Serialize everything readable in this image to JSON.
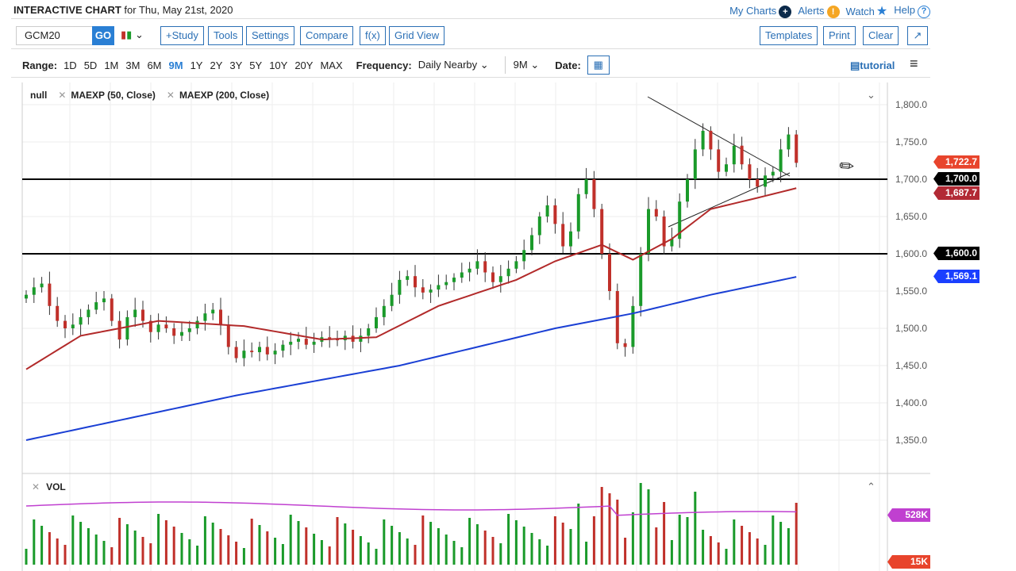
{
  "header": {
    "title_bold": "INTERACTIVE CHART",
    "title_rest": " for Thu, May 21st, 2020",
    "links": [
      "My Charts",
      "Alerts",
      "Watch",
      "Help"
    ]
  },
  "toolbar": {
    "symbol": "GCM20",
    "go": "GO",
    "buttons": [
      "+Study",
      "Tools",
      "Settings",
      "Compare",
      "f(x)",
      "Grid View"
    ],
    "right_buttons": [
      "Templates",
      "Print",
      "Clear"
    ]
  },
  "range": {
    "label": "Range:",
    "options": [
      "1D",
      "5D",
      "1M",
      "3M",
      "6M",
      "9M",
      "1Y",
      "2Y",
      "3Y",
      "5Y",
      "10Y",
      "20Y",
      "MAX"
    ],
    "active": "9M",
    "frequency_label": "Frequency:",
    "frequency": "Daily Nearby",
    "period": "9M",
    "date_label": "Date:",
    "tutorial": "tutorial"
  },
  "studies": {
    "main": "null",
    "ma1": "MAEXP (50, Close)",
    "ma2": "MAEXP (200, Close)",
    "vol": "VOL"
  },
  "colors": {
    "accent": "#2a6fb5",
    "up": "#1a9a2a",
    "down": "#c0302a",
    "ma50": "#b22a2a",
    "ma200": "#1a3fd4",
    "vol_ma": "#c040d0"
  },
  "chart_data": {
    "type": "candlestick",
    "yticks": [
      "1,800.0",
      "1,750.0",
      "1,700.0",
      "1,650.0",
      "1,600.0",
      "1,550.0",
      "1,500.0",
      "1,450.0",
      "1,400.0",
      "1,350.0"
    ],
    "ylim": [
      1325,
      1825
    ],
    "closes": [
      1545,
      1555,
      1560,
      1530,
      1510,
      1500,
      1505,
      1515,
      1525,
      1535,
      1540,
      1510,
      1485,
      1515,
      1525,
      1510,
      1495,
      1505,
      1500,
      1490,
      1495,
      1500,
      1510,
      1520,
      1525,
      1505,
      1475,
      1460,
      1470,
      1468,
      1475,
      1465,
      1470,
      1478,
      1482,
      1486,
      1478,
      1482,
      1488,
      1486,
      1484,
      1490,
      1482,
      1490,
      1500,
      1515,
      1530,
      1545,
      1565,
      1570,
      1555,
      1548,
      1552,
      1558,
      1562,
      1568,
      1575,
      1580,
      1590,
      1575,
      1562,
      1570,
      1580,
      1590,
      1605,
      1625,
      1650,
      1665,
      1640,
      1610,
      1630,
      1680,
      1700,
      1660,
      1600,
      1550,
      1480,
      1475,
      1530,
      1600,
      1660,
      1650,
      1610,
      1620,
      1670,
      1700,
      1740,
      1765,
      1740,
      1710,
      1720,
      1745,
      1720,
      1700,
      1690,
      1705,
      1710,
      1740,
      1760,
      1722
    ],
    "ma50": [
      [
        0,
        1445
      ],
      [
        7,
        1490
      ],
      [
        17,
        1510
      ],
      [
        28,
        1503
      ],
      [
        38,
        1485
      ],
      [
        45,
        1488
      ],
      [
        53,
        1530
      ],
      [
        63,
        1565
      ],
      [
        68,
        1590
      ],
      [
        74,
        1612
      ],
      [
        78,
        1592
      ],
      [
        83,
        1620
      ],
      [
        88,
        1660
      ],
      [
        94,
        1675
      ],
      [
        99,
        1688
      ]
    ],
    "ma200": [
      [
        0,
        1350
      ],
      [
        27,
        1410
      ],
      [
        48,
        1450
      ],
      [
        68,
        1500
      ],
      [
        78,
        1520
      ],
      [
        88,
        1545
      ],
      [
        99,
        1569
      ]
    ],
    "levels": [
      {
        "label": "1,700.0",
        "value": 1700
      },
      {
        "label": "1,600.0",
        "value": 1600
      }
    ],
    "tags": [
      {
        "label": "1,722.7",
        "value": 1722.7,
        "color": "#e8442c"
      },
      {
        "label": "1,700.0",
        "value": 1700,
        "color": "#000000"
      },
      {
        "label": "1,687.7",
        "value": 1687.7,
        "color": "#b22a35"
      },
      {
        "label": "1,600.0",
        "value": 1600,
        "color": "#000000"
      },
      {
        "label": "1,569.1",
        "value": 1569.1,
        "color": "#1a3fff"
      }
    ],
    "volume_tags": [
      "528K",
      "15K"
    ]
  }
}
